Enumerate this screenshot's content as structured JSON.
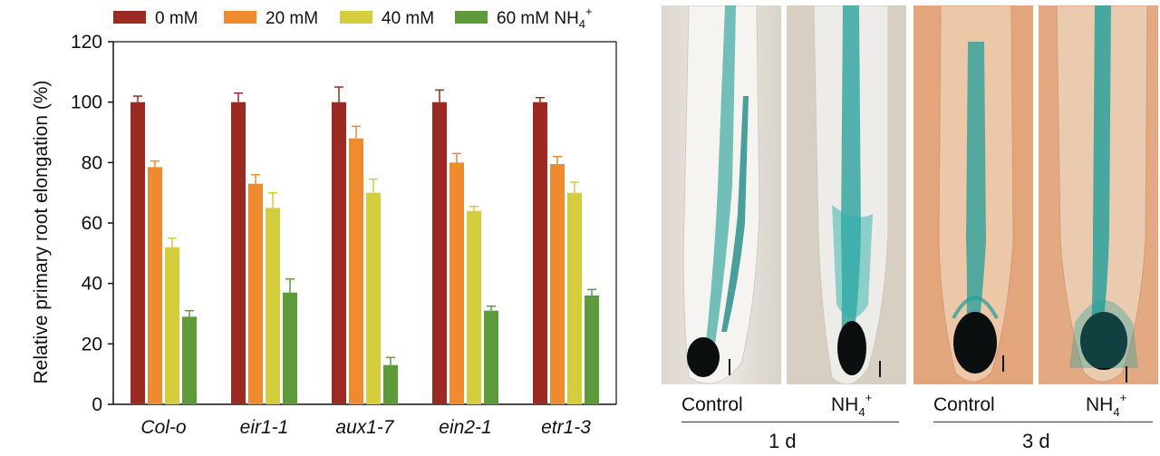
{
  "chart_data": {
    "type": "bar",
    "ylabel": "Relative primary root elongation (%)",
    "xlabel": "",
    "ylim": [
      0,
      120
    ],
    "yticks": [
      0,
      20,
      40,
      60,
      80,
      100,
      120
    ],
    "categories": [
      "Col-o",
      "eir1-1",
      "aux1-7",
      "ein2-1",
      "etr1-3"
    ],
    "series": [
      {
        "name": "0 mM",
        "color": "#9b2a22",
        "values": [
          100,
          100,
          100,
          100,
          100
        ],
        "errors": [
          2,
          3,
          5,
          4,
          1.5
        ]
      },
      {
        "name": "20 mM",
        "color": "#ef8a2e",
        "values": [
          78.5,
          73,
          88,
          80,
          79.5
        ],
        "errors": [
          2,
          3,
          4,
          3,
          2.5
        ]
      },
      {
        "name": "40 mM",
        "color": "#d4cd3c",
        "values": [
          52,
          65,
          70,
          64,
          70
        ],
        "errors": [
          3,
          5,
          4.5,
          1.5,
          3.5
        ]
      },
      {
        "name": "60 mM NH4+",
        "color": "#5d9a3a",
        "values": [
          29,
          37,
          13,
          31,
          36
        ],
        "errors": [
          2,
          4.5,
          2.5,
          1.5,
          2
        ]
      }
    ]
  },
  "legend": {
    "items": [
      {
        "label": "0 mM",
        "suffix": ""
      },
      {
        "label": "20 mM",
        "suffix": ""
      },
      {
        "label": "40 mM",
        "suffix": ""
      },
      {
        "label": "60 mM NH",
        "suffix": "4+"
      }
    ]
  },
  "photos": {
    "labels": {
      "control_1": "Control",
      "nh4_1_base": "NH",
      "nh4_1_sub": "4",
      "nh4_1_sup": "+",
      "control_2": "Control",
      "nh4_2_base": "NH",
      "nh4_2_sub": "4",
      "nh4_2_sup": "+"
    },
    "groups": {
      "day1": "1 d",
      "day3": "3 d"
    },
    "colors": {
      "bg_light": "#e8e4de",
      "bg_warm": "#e4ac85",
      "stain": "#1f9e9a",
      "tip": "#0b0f10"
    }
  }
}
